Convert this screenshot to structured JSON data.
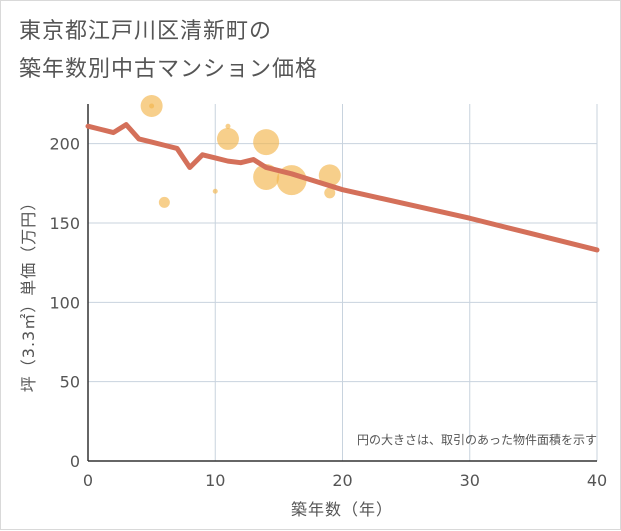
{
  "title": {
    "line1": "東京都江戸川区清新町の",
    "line2": "築年数別中古マンション価格"
  },
  "chart_data": {
    "type": "scatter",
    "xlabel": "築年数（年）",
    "ylabel": "坪（3.3㎡）単価（万円）",
    "xlim": [
      0,
      40
    ],
    "ylim": [
      0,
      225
    ],
    "xticks": [
      0,
      10,
      20,
      30,
      40
    ],
    "yticks": [
      0,
      50,
      100,
      150,
      200
    ],
    "grid": true,
    "annotation": "円の大きさは、取引のあった物件面積を示す",
    "colors": {
      "bubble": "#f2b54d",
      "trend": "#d4705a",
      "grid": "#c8d3de",
      "text": "#555555"
    },
    "scatter_points": [
      {
        "x": 5,
        "y": 234,
        "size": 3
      },
      {
        "x": 5,
        "y": 238,
        "size": 1
      },
      {
        "x": 6,
        "y": 163,
        "size": 2
      },
      {
        "x": 10,
        "y": 170,
        "size": 1
      },
      {
        "x": 11,
        "y": 203,
        "size": 3
      },
      {
        "x": 11,
        "y": 211,
        "size": 1
      },
      {
        "x": 14,
        "y": 201,
        "size": 4
      },
      {
        "x": 14,
        "y": 179,
        "size": 4
      },
      {
        "x": 16,
        "y": 177,
        "size": 5
      },
      {
        "x": 19,
        "y": 180,
        "size": 3
      },
      {
        "x": 19,
        "y": 169,
        "size": 2
      }
    ],
    "trend_line": [
      {
        "x": 0,
        "y": 211
      },
      {
        "x": 1,
        "y": 209
      },
      {
        "x": 2,
        "y": 207
      },
      {
        "x": 3,
        "y": 212
      },
      {
        "x": 4,
        "y": 203
      },
      {
        "x": 5,
        "y": 201
      },
      {
        "x": 6,
        "y": 199
      },
      {
        "x": 7,
        "y": 197
      },
      {
        "x": 8,
        "y": 185
      },
      {
        "x": 9,
        "y": 193
      },
      {
        "x": 10,
        "y": 191
      },
      {
        "x": 11,
        "y": 189
      },
      {
        "x": 12,
        "y": 188
      },
      {
        "x": 13,
        "y": 190
      },
      {
        "x": 14,
        "y": 185
      },
      {
        "x": 16,
        "y": 181
      },
      {
        "x": 18,
        "y": 176
      },
      {
        "x": 20,
        "y": 171
      },
      {
        "x": 25,
        "y": 162
      },
      {
        "x": 30,
        "y": 153
      },
      {
        "x": 35,
        "y": 143
      },
      {
        "x": 40,
        "y": 133
      }
    ]
  }
}
